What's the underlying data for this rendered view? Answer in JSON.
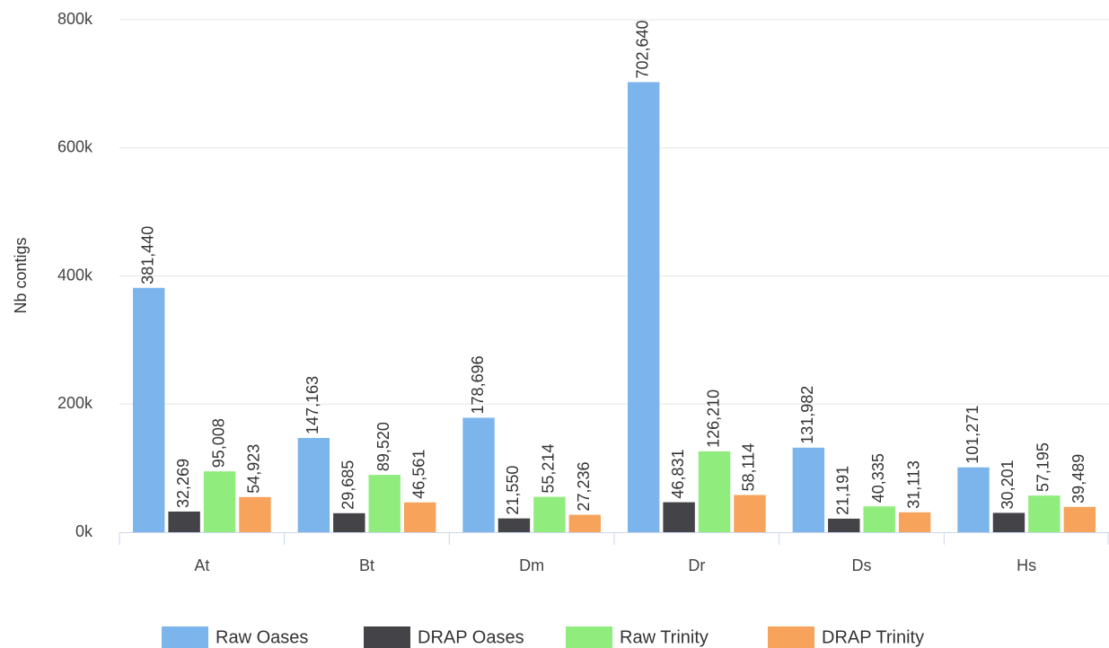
{
  "chart_data": {
    "type": "bar",
    "y_label": "Nb contigs",
    "categories": [
      "At",
      "Bt",
      "Dm",
      "Dr",
      "Ds",
      "Hs"
    ],
    "series": [
      {
        "name": "Raw Oases",
        "color": "#7cb5ec",
        "values": [
          381440,
          147163,
          178696,
          702640,
          131982,
          101271
        ],
        "value_labels": [
          "381,440",
          "147,163",
          "178,696",
          "702,640",
          "131,982",
          "101,271"
        ]
      },
      {
        "name": "DRAP Oases",
        "color": "#434348",
        "values": [
          32269,
          29685,
          21550,
          46831,
          21191,
          30201
        ],
        "value_labels": [
          "32,269",
          "29,685",
          "21,550",
          "46,831",
          "21,191",
          "30,201"
        ]
      },
      {
        "name": "Raw Trinity",
        "color": "#90ed7d",
        "values": [
          95008,
          89520,
          55214,
          126210,
          40335,
          57195
        ],
        "value_labels": [
          "95,008",
          "89,520",
          "55,214",
          "126,210",
          "40,335",
          "57,195"
        ]
      },
      {
        "name": "DRAP Trinity",
        "color": "#f7a35c",
        "values": [
          54923,
          46561,
          27236,
          58114,
          31113,
          39489
        ],
        "value_labels": [
          "54,923",
          "46,561",
          "27,236",
          "58,114",
          "31,113",
          "39,489"
        ]
      }
    ],
    "ylim": [
      0,
      800000
    ],
    "yticks": [
      {
        "value": 0,
        "label": "0k"
      },
      {
        "value": 200000,
        "label": "200k"
      },
      {
        "value": 400000,
        "label": "400k"
      },
      {
        "value": 600000,
        "label": "600k"
      },
      {
        "value": 800000,
        "label": "800k"
      }
    ],
    "grid": true,
    "legend": "bottom"
  }
}
